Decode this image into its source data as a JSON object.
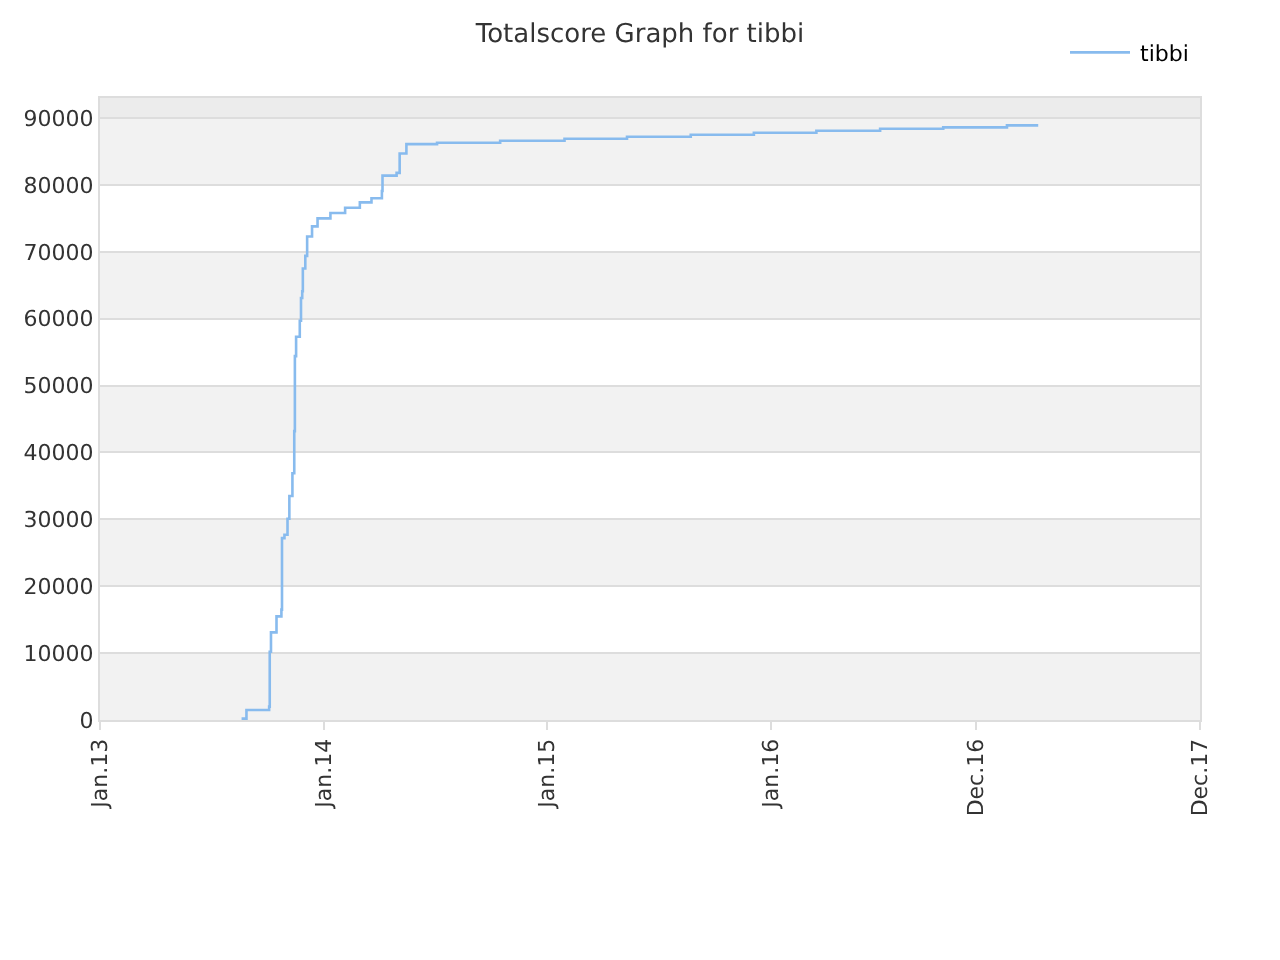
{
  "chart_data": {
    "type": "step",
    "title": "Totalscore Graph for tibbi",
    "series": [
      {
        "name": "tibbi",
        "color": "#88bbee",
        "x": [
          "2013-08-20",
          "2013-08-28",
          "2013-10-04",
          "2013-10-05",
          "2013-10-07",
          "2013-10-16",
          "2013-10-24",
          "2013-10-25",
          "2013-10-29",
          "2013-11-03",
          "2013-11-06",
          "2013-11-11",
          "2013-11-14",
          "2013-11-15",
          "2013-11-17",
          "2013-11-23",
          "2013-11-25",
          "2013-11-27",
          "2013-11-28",
          "2013-12-02",
          "2013-12-05",
          "2013-12-13",
          "2013-12-22",
          "2014-01-12",
          "2014-02-05",
          "2014-03-01",
          "2014-03-20",
          "2014-04-06",
          "2014-04-07",
          "2014-04-30",
          "2014-05-05",
          "2014-05-16",
          "2014-07-05",
          "2014-10-16",
          "2015-01-29",
          "2015-05-11",
          "2015-08-23",
          "2015-12-04",
          "2016-03-15",
          "2016-06-27",
          "2016-10-08",
          "2017-01-20",
          "2017-03-12"
        ],
        "values": [
          200,
          1500,
          2000,
          10200,
          13100,
          15500,
          16500,
          27200,
          27700,
          30100,
          33500,
          36900,
          43200,
          54400,
          57300,
          59700,
          63100,
          64100,
          67500,
          69400,
          72300,
          73800,
          75000,
          75800,
          76600,
          77400,
          78000,
          79100,
          81400,
          81800,
          84700,
          86100,
          86300,
          86600,
          86900,
          87200,
          87500,
          87800,
          88100,
          88400,
          88600,
          88900,
          88900
        ]
      }
    ],
    "xlim": [
      "2013-01-01",
      "2017-12-01"
    ],
    "xticks": [
      {
        "value": "2013-01-01",
        "label": "Jan.13"
      },
      {
        "value": "2014-01-01",
        "label": "Jan.14"
      },
      {
        "value": "2015-01-01",
        "label": "Jan.15"
      },
      {
        "value": "2016-01-01",
        "label": "Jan.16"
      },
      {
        "value": "2016-12-01",
        "label": "Dec.16"
      },
      {
        "value": "2017-12-01",
        "label": "Dec.17"
      }
    ],
    "ylim": [
      0,
      93000
    ],
    "yticks": [
      0,
      10000,
      20000,
      30000,
      40000,
      50000,
      60000,
      70000,
      80000,
      90000
    ],
    "bands": [
      {
        "axis": "y",
        "from": 0,
        "to": 10000,
        "color": "#f2f2f2"
      },
      {
        "axis": "y",
        "from": 20000,
        "to": 30000,
        "color": "#f2f2f2"
      },
      {
        "axis": "y",
        "from": 40000,
        "to": 50000,
        "color": "#f2f2f2"
      },
      {
        "axis": "y",
        "from": 60000,
        "to": 70000,
        "color": "#f2f2f2"
      },
      {
        "axis": "y",
        "from": 80000,
        "to": 90000,
        "color": "#f2f2f2"
      },
      {
        "axis": "y",
        "from": 90000,
        "to": 93000,
        "color": "#ececec"
      }
    ],
    "grid": "y",
    "legend": "top right",
    "marker": "none",
    "line_style": "solid"
  }
}
